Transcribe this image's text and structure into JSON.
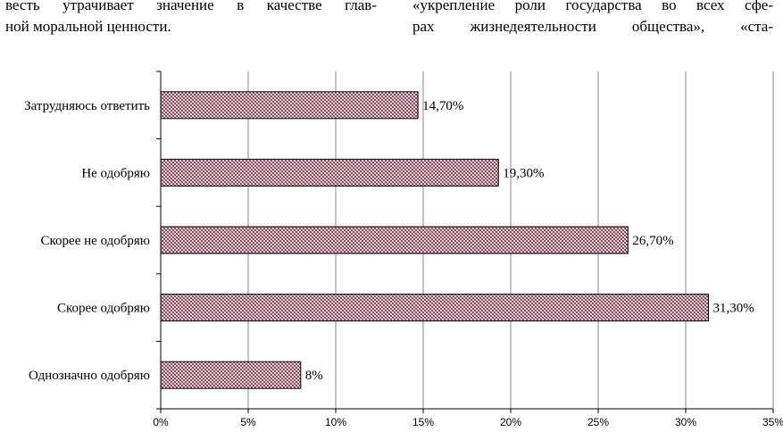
{
  "page_text": {
    "left_column": [
      "весть утрачивает значение в качестве глав-",
      "ной моральной ценности."
    ],
    "right_column": [
      "«укрепление роли государства во всех сфе-",
      "рах жизнедеятельности общества», «ста-"
    ]
  },
  "chart_data": {
    "type": "bar",
    "orientation": "horizontal",
    "categories": [
      "Затрудняюсь ответить",
      "Не одобряю",
      "Скорее не одобряю",
      "Скорее одобряю",
      "Однозначно одобряю"
    ],
    "values": [
      14.7,
      19.3,
      26.7,
      31.3,
      8
    ],
    "value_labels": [
      "14,70%",
      "19,30%",
      "26,70%",
      "31,30%",
      "8%"
    ],
    "xlim": [
      0,
      35
    ],
    "xticks": [
      0,
      5,
      10,
      15,
      20,
      25,
      30,
      35
    ],
    "xtick_labels": [
      "0%",
      "5%",
      "10%",
      "15%",
      "20%",
      "25%",
      "30%",
      "35%"
    ],
    "grid": "vertical",
    "bar_color": "#b0576f",
    "title": "",
    "xlabel": "",
    "ylabel": ""
  }
}
